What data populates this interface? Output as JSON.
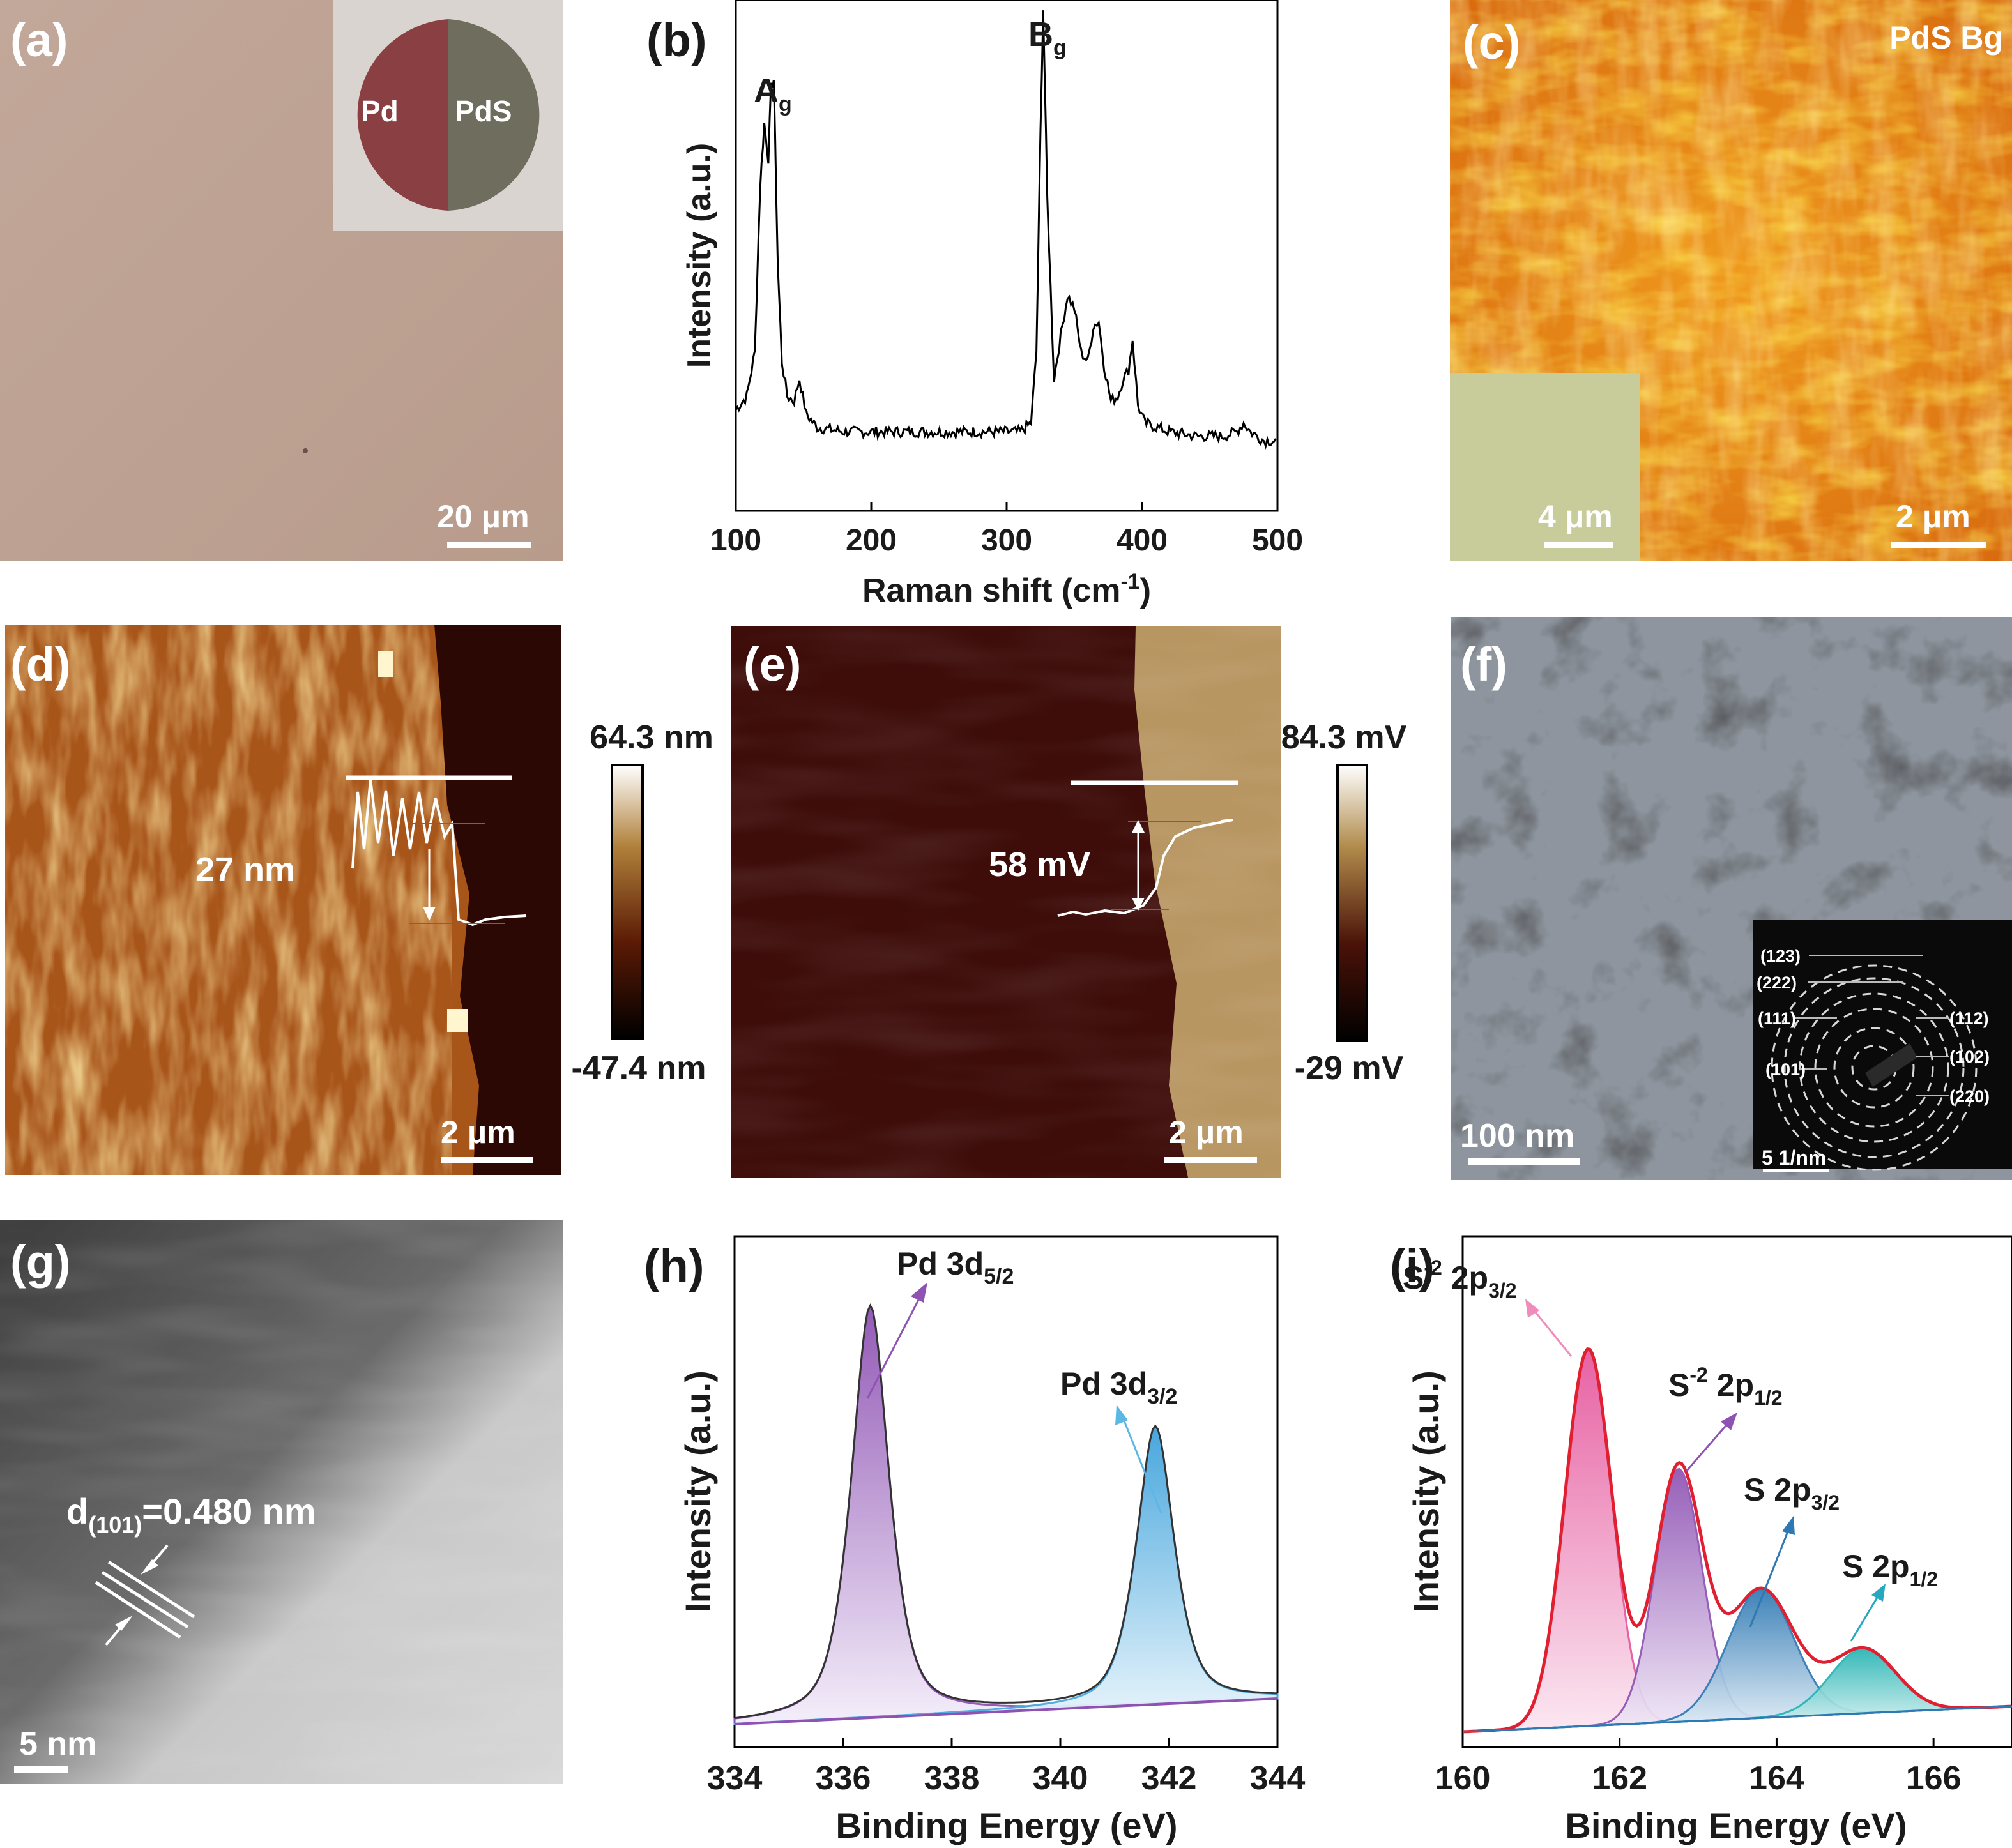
{
  "panels": {
    "a": {
      "label": "(a)",
      "inset_left": "Pd",
      "inset_right": "PdS",
      "scalebar": "20 μm"
    },
    "b": {
      "label": "(b)",
      "peak1": "A",
      "peak1_sub": "g",
      "peak2": "B",
      "peak2_sub": "g",
      "ylabel": "Intensity (a.u.)",
      "xlabel": "Raman shift (cm",
      "xlabel_sup": "-1",
      "xlabel_end": ")"
    },
    "c": {
      "label": "(c)",
      "title": "PdS Bg",
      "inset_scalebar": "4 μm",
      "scalebar": "2 μm"
    },
    "d": {
      "label": "(d)",
      "profile_label": "27 nm",
      "scalebar": "2 μm",
      "cbar_max": "64.3 nm",
      "cbar_min": "-47.4 nm"
    },
    "e": {
      "label": "(e)",
      "profile_label": "58 mV",
      "scalebar": "2 μm",
      "cbar_max": "84.3 mV",
      "cbar_min": "-29 mV"
    },
    "f": {
      "label": "(f)",
      "scalebar": "100 nm",
      "inset_scalebar": "5 1/nm",
      "rings": [
        "(123)",
        "(222)",
        "(111)",
        "(101)",
        "(112)",
        "(102)",
        "(220)"
      ]
    },
    "g": {
      "label": "(g)",
      "dlabel_pre": "d",
      "dlabel_sub": "(101)",
      "dlabel_post": "=0.480 nm",
      "scalebar": "5 nm"
    },
    "h": {
      "label": "(h)",
      "peak1": "Pd 3d",
      "peak1_sub": "5/2",
      "peak2": "Pd 3d",
      "peak2_sub": "3/2",
      "ylabel": "Intensity (a.u.)",
      "xlabel": "Binding Energy (eV)"
    },
    "i": {
      "label": "(i)",
      "p1": "S",
      "p1_sup": "-2",
      "p1_b": " 2p",
      "p1_sub": "3/2",
      "p2": "S",
      "p2_sup": "-2",
      "p2_b": " 2p",
      "p2_sub": "1/2",
      "p3": "S 2p",
      "p3_sub": "3/2",
      "p4": "S 2p",
      "p4_sub": "1/2",
      "ylabel": "Intensity (a.u.)",
      "xlabel": "Binding Energy (eV)"
    }
  },
  "chart_data": [
    {
      "type": "line",
      "panel": "b",
      "xlabel": "Raman shift (cm-1)",
      "ylabel": "Intensity (a.u.)",
      "xlim": [
        100,
        500
      ],
      "xticks": [
        100,
        200,
        300,
        400,
        500
      ],
      "annotations": [
        "Ag",
        "Bg"
      ],
      "series": [
        {
          "x": [
            100,
            108,
            114,
            118,
            121,
            124,
            126,
            128,
            131,
            134,
            138,
            143,
            147,
            152,
            160,
            180,
            200,
            230,
            260,
            280,
            300,
            310,
            318,
            322,
            325,
            327,
            330,
            335,
            340,
            345,
            350,
            355,
            360,
            364,
            368,
            372,
            377,
            382,
            386,
            390,
            393,
            397,
            402,
            420,
            440,
            460,
            470,
            475,
            480,
            490,
            500
          ],
          "y": [
            0.07,
            0.1,
            0.2,
            0.58,
            0.72,
            0.64,
            0.8,
            0.82,
            0.4,
            0.18,
            0.1,
            0.09,
            0.14,
            0.06,
            0.03,
            0.02,
            0.02,
            0.02,
            0.02,
            0.02,
            0.02,
            0.02,
            0.04,
            0.2,
            0.7,
            0.98,
            0.55,
            0.14,
            0.24,
            0.33,
            0.3,
            0.2,
            0.18,
            0.26,
            0.27,
            0.17,
            0.09,
            0.1,
            0.14,
            0.16,
            0.23,
            0.08,
            0.04,
            0.02,
            0.01,
            0.01,
            0.02,
            0.04,
            0.02,
            0.0,
            0.0
          ]
        }
      ]
    },
    {
      "type": "area",
      "panel": "h",
      "xlabel": "Binding Energy (eV)",
      "ylabel": "Intensity (a.u.)",
      "xlim": [
        334,
        344
      ],
      "xticks": [
        334,
        336,
        338,
        340,
        342,
        344
      ],
      "series": [
        {
          "name": "Pd 3d5/2",
          "center": 336.5,
          "height": 0.92,
          "width": 0.38,
          "color": "#8e52b3"
        },
        {
          "name": "Pd 3d3/2",
          "center": 341.75,
          "height": 0.62,
          "width": 0.38,
          "color": "#4aa9df"
        }
      ]
    },
    {
      "type": "area",
      "panel": "i",
      "xlabel": "Binding Energy (eV)",
      "ylabel": "Intensity (a.u.)",
      "xlim": [
        160,
        167
      ],
      "xticks": [
        160,
        162,
        164,
        166
      ],
      "series": [
        {
          "name": "S-2 2p3/2",
          "center": 161.6,
          "height": 0.82,
          "width": 0.3,
          "color": "#e6559c"
        },
        {
          "name": "S-2 2p1/2",
          "center": 162.75,
          "height": 0.55,
          "width": 0.3,
          "color": "#8e52b3"
        },
        {
          "name": "S 2p3/2",
          "center": 163.8,
          "height": 0.28,
          "width": 0.42,
          "color": "#2e78b3"
        },
        {
          "name": "S 2p1/2",
          "center": 165.1,
          "height": 0.14,
          "width": 0.42,
          "color": "#26b3b3"
        }
      ]
    }
  ]
}
